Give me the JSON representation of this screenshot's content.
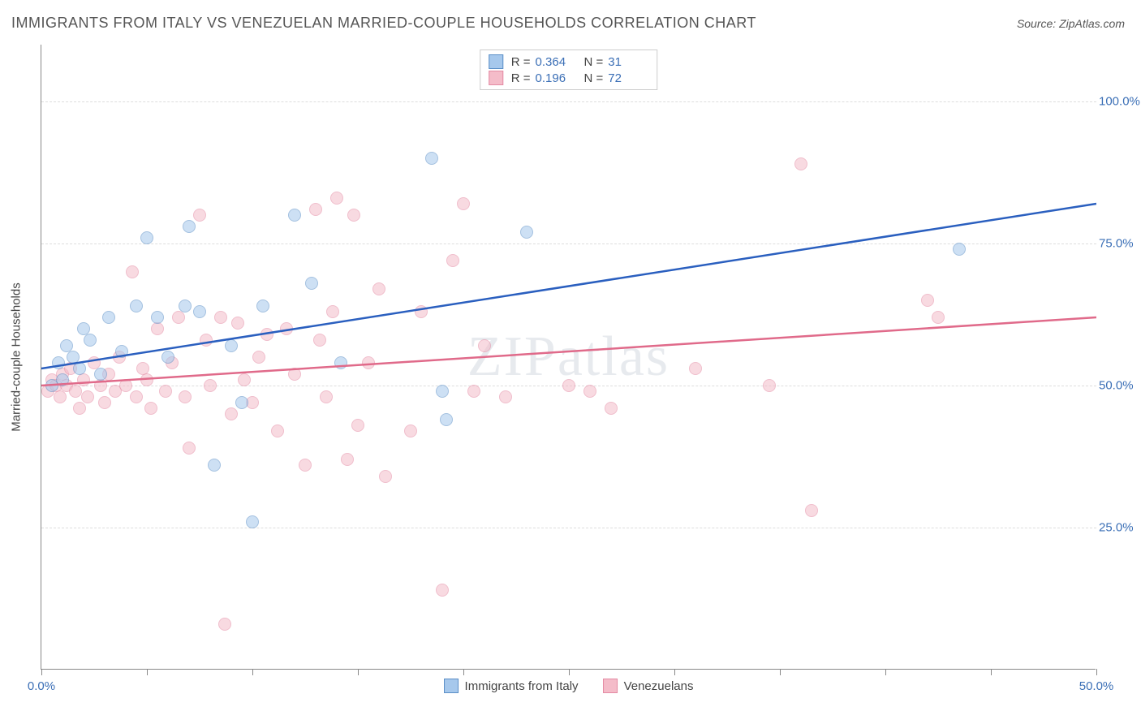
{
  "header": {
    "title": "IMMIGRANTS FROM ITALY VS VENEZUELAN MARRIED-COUPLE HOUSEHOLDS CORRELATION CHART",
    "source": "Source: ZipAtlas.com"
  },
  "watermark": "ZIPatlas",
  "chart": {
    "type": "scatter",
    "ylabel": "Married-couple Households",
    "xlim": [
      0,
      50
    ],
    "ylim": [
      0,
      110
    ],
    "yticks": [
      25,
      50,
      75,
      100
    ],
    "ytick_labels": [
      "25.0%",
      "50.0%",
      "75.0%",
      "100.0%"
    ],
    "xticks": [
      0,
      5,
      10,
      15,
      20,
      25,
      30,
      35,
      40,
      45,
      50
    ],
    "xtick_labels": {
      "0": "0.0%",
      "50": "50.0%"
    },
    "xtick_label_positions": [
      0,
      50
    ],
    "background_color": "#ffffff",
    "grid_color": "#dddddd",
    "axis_color": "#888888",
    "tick_label_color": "#3b6fb6",
    "marker_radius": 8,
    "marker_opacity": 0.55,
    "series": [
      {
        "name": "Immigrants from Italy",
        "color_fill": "#a6c8ec",
        "color_stroke": "#5b8fc7",
        "legend": {
          "R": "0.364",
          "N": "31"
        },
        "trend": {
          "y_at_xmin": 53,
          "y_at_xmax": 82,
          "stroke": "#2a5fbf",
          "width": 2.5
        },
        "points": [
          [
            0.5,
            50
          ],
          [
            0.8,
            54
          ],
          [
            1,
            51
          ],
          [
            1.2,
            57
          ],
          [
            1.5,
            55
          ],
          [
            1.8,
            53
          ],
          [
            2,
            60
          ],
          [
            2.3,
            58
          ],
          [
            2.8,
            52
          ],
          [
            3.2,
            62
          ],
          [
            3.8,
            56
          ],
          [
            4.5,
            64
          ],
          [
            5,
            76
          ],
          [
            5.5,
            62
          ],
          [
            6,
            55
          ],
          [
            6.8,
            64
          ],
          [
            7,
            78
          ],
          [
            7.5,
            63
          ],
          [
            8.2,
            36
          ],
          [
            9,
            57
          ],
          [
            9.5,
            47
          ],
          [
            10,
            26
          ],
          [
            10.5,
            64
          ],
          [
            12,
            80
          ],
          [
            12.8,
            68
          ],
          [
            14.2,
            54
          ],
          [
            18.5,
            90
          ],
          [
            19,
            49
          ],
          [
            19.2,
            44
          ],
          [
            23,
            77
          ],
          [
            43.5,
            74
          ]
        ]
      },
      {
        "name": "Venezuelans",
        "color_fill": "#f4bcc9",
        "color_stroke": "#e48aa3",
        "legend": {
          "R": "0.196",
          "N": "72"
        },
        "trend": {
          "y_at_xmin": 50,
          "y_at_xmax": 62,
          "stroke": "#e06a8a",
          "width": 2.5
        },
        "points": [
          [
            0.3,
            49
          ],
          [
            0.5,
            51
          ],
          [
            0.7,
            50
          ],
          [
            0.9,
            48
          ],
          [
            1,
            52
          ],
          [
            1.2,
            50
          ],
          [
            1.4,
            53
          ],
          [
            1.6,
            49
          ],
          [
            1.8,
            46
          ],
          [
            2,
            51
          ],
          [
            2.2,
            48
          ],
          [
            2.5,
            54
          ],
          [
            2.8,
            50
          ],
          [
            3,
            47
          ],
          [
            3.2,
            52
          ],
          [
            3.5,
            49
          ],
          [
            3.7,
            55
          ],
          [
            4,
            50
          ],
          [
            4.3,
            70
          ],
          [
            4.5,
            48
          ],
          [
            4.8,
            53
          ],
          [
            5,
            51
          ],
          [
            5.2,
            46
          ],
          [
            5.5,
            60
          ],
          [
            5.9,
            49
          ],
          [
            6.2,
            54
          ],
          [
            6.5,
            62
          ],
          [
            6.8,
            48
          ],
          [
            7,
            39
          ],
          [
            7.5,
            80
          ],
          [
            7.8,
            58
          ],
          [
            8,
            50
          ],
          [
            8.5,
            62
          ],
          [
            8.7,
            8
          ],
          [
            9,
            45
          ],
          [
            9.3,
            61
          ],
          [
            9.6,
            51
          ],
          [
            10,
            47
          ],
          [
            10.3,
            55
          ],
          [
            10.7,
            59
          ],
          [
            11.2,
            42
          ],
          [
            11.6,
            60
          ],
          [
            12,
            52
          ],
          [
            12.5,
            36
          ],
          [
            13,
            81
          ],
          [
            13.2,
            58
          ],
          [
            13.5,
            48
          ],
          [
            13.8,
            63
          ],
          [
            14,
            83
          ],
          [
            14.5,
            37
          ],
          [
            14.8,
            80
          ],
          [
            15,
            43
          ],
          [
            15.5,
            54
          ],
          [
            16,
            67
          ],
          [
            16.3,
            34
          ],
          [
            17.5,
            42
          ],
          [
            18,
            63
          ],
          [
            19,
            14
          ],
          [
            19.5,
            72
          ],
          [
            20,
            82
          ],
          [
            20.5,
            49
          ],
          [
            21,
            57
          ],
          [
            22,
            48
          ],
          [
            25,
            50
          ],
          [
            27,
            46
          ],
          [
            31,
            53
          ],
          [
            36,
            89
          ],
          [
            36.5,
            28
          ],
          [
            42,
            65
          ],
          [
            42.5,
            62
          ],
          [
            34.5,
            50
          ],
          [
            26,
            49
          ]
        ]
      }
    ]
  },
  "legend_top": {
    "r_label": "R =",
    "n_label": "N ="
  },
  "legend_bottom": [
    {
      "label": "Immigrants from Italy",
      "fill": "#a6c8ec",
      "stroke": "#5b8fc7"
    },
    {
      "label": "Venezuelans",
      "fill": "#f4bcc9",
      "stroke": "#e48aa3"
    }
  ]
}
